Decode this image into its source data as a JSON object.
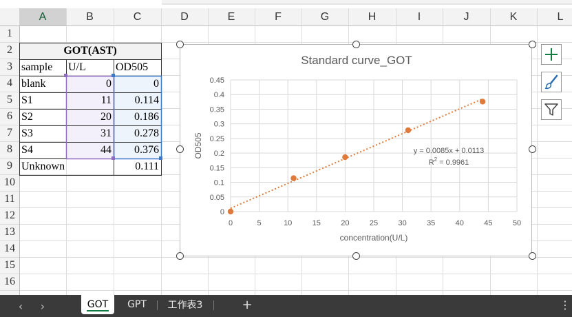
{
  "columns": [
    "A",
    "B",
    "C",
    "D",
    "E",
    "F",
    "G",
    "H",
    "I",
    "J",
    "K",
    "L"
  ],
  "rows": [
    "1",
    "2",
    "3",
    "4",
    "5",
    "6",
    "7",
    "8",
    "9",
    "10",
    "11",
    "12",
    "13",
    "14",
    "15",
    "16"
  ],
  "table": {
    "title": "GOT(AST)",
    "headers": [
      "sample",
      "U/L",
      "OD505"
    ],
    "rows": [
      {
        "sample": "blank",
        "ul": "0",
        "od": "0"
      },
      {
        "sample": "S1",
        "ul": "11",
        "od": "0.114"
      },
      {
        "sample": "S2",
        "ul": "20",
        "od": "0.186"
      },
      {
        "sample": "S3",
        "ul": "31",
        "od": "0.278"
      },
      {
        "sample": "S4",
        "ul": "44",
        "od": "0.376"
      }
    ],
    "unknown": {
      "sample": "Unknown",
      "od": "0.111"
    }
  },
  "chart_data": {
    "type": "scatter",
    "title": "Standard curve_GOT",
    "xlabel": "concentration(U/L)",
    "ylabel": "OD505",
    "xlim": [
      0,
      50
    ],
    "ylim": [
      0,
      0.45
    ],
    "xticks": [
      "0",
      "5",
      "10",
      "15",
      "20",
      "25",
      "30",
      "35",
      "40",
      "45",
      "50"
    ],
    "yticks": [
      "0",
      "0.05",
      "0.1",
      "0.15",
      "0.2",
      "0.25",
      "0.3",
      "0.35",
      "0.4",
      "0.45"
    ],
    "grid": true,
    "series": [
      {
        "x": [
          0,
          11,
          20,
          31,
          44
        ],
        "y": [
          0,
          0.114,
          0.186,
          0.278,
          0.376
        ],
        "color": "#e07a3a"
      }
    ],
    "trendline": {
      "type": "linear",
      "slope": 0.0085,
      "intercept": 0.0113,
      "color": "#e07a3a"
    },
    "equation": "y = 0.0085x + 0.0113",
    "r2_label": "R",
    "r2_sup": "2",
    "r2_value": " = 0.9961"
  },
  "side_buttons": [
    {
      "icon": "plus-icon",
      "color": "#107c41"
    },
    {
      "icon": "brush-icon",
      "color": "#2b6cb0"
    },
    {
      "icon": "filter-icon",
      "color": "#444444"
    }
  ],
  "sheet_tabs": [
    "GOT",
    "GPT",
    "工作表3"
  ],
  "active_tab": "GOT",
  "add_sheet": "+",
  "nav_prev": "‹",
  "nav_next": "›",
  "more": "⋮"
}
